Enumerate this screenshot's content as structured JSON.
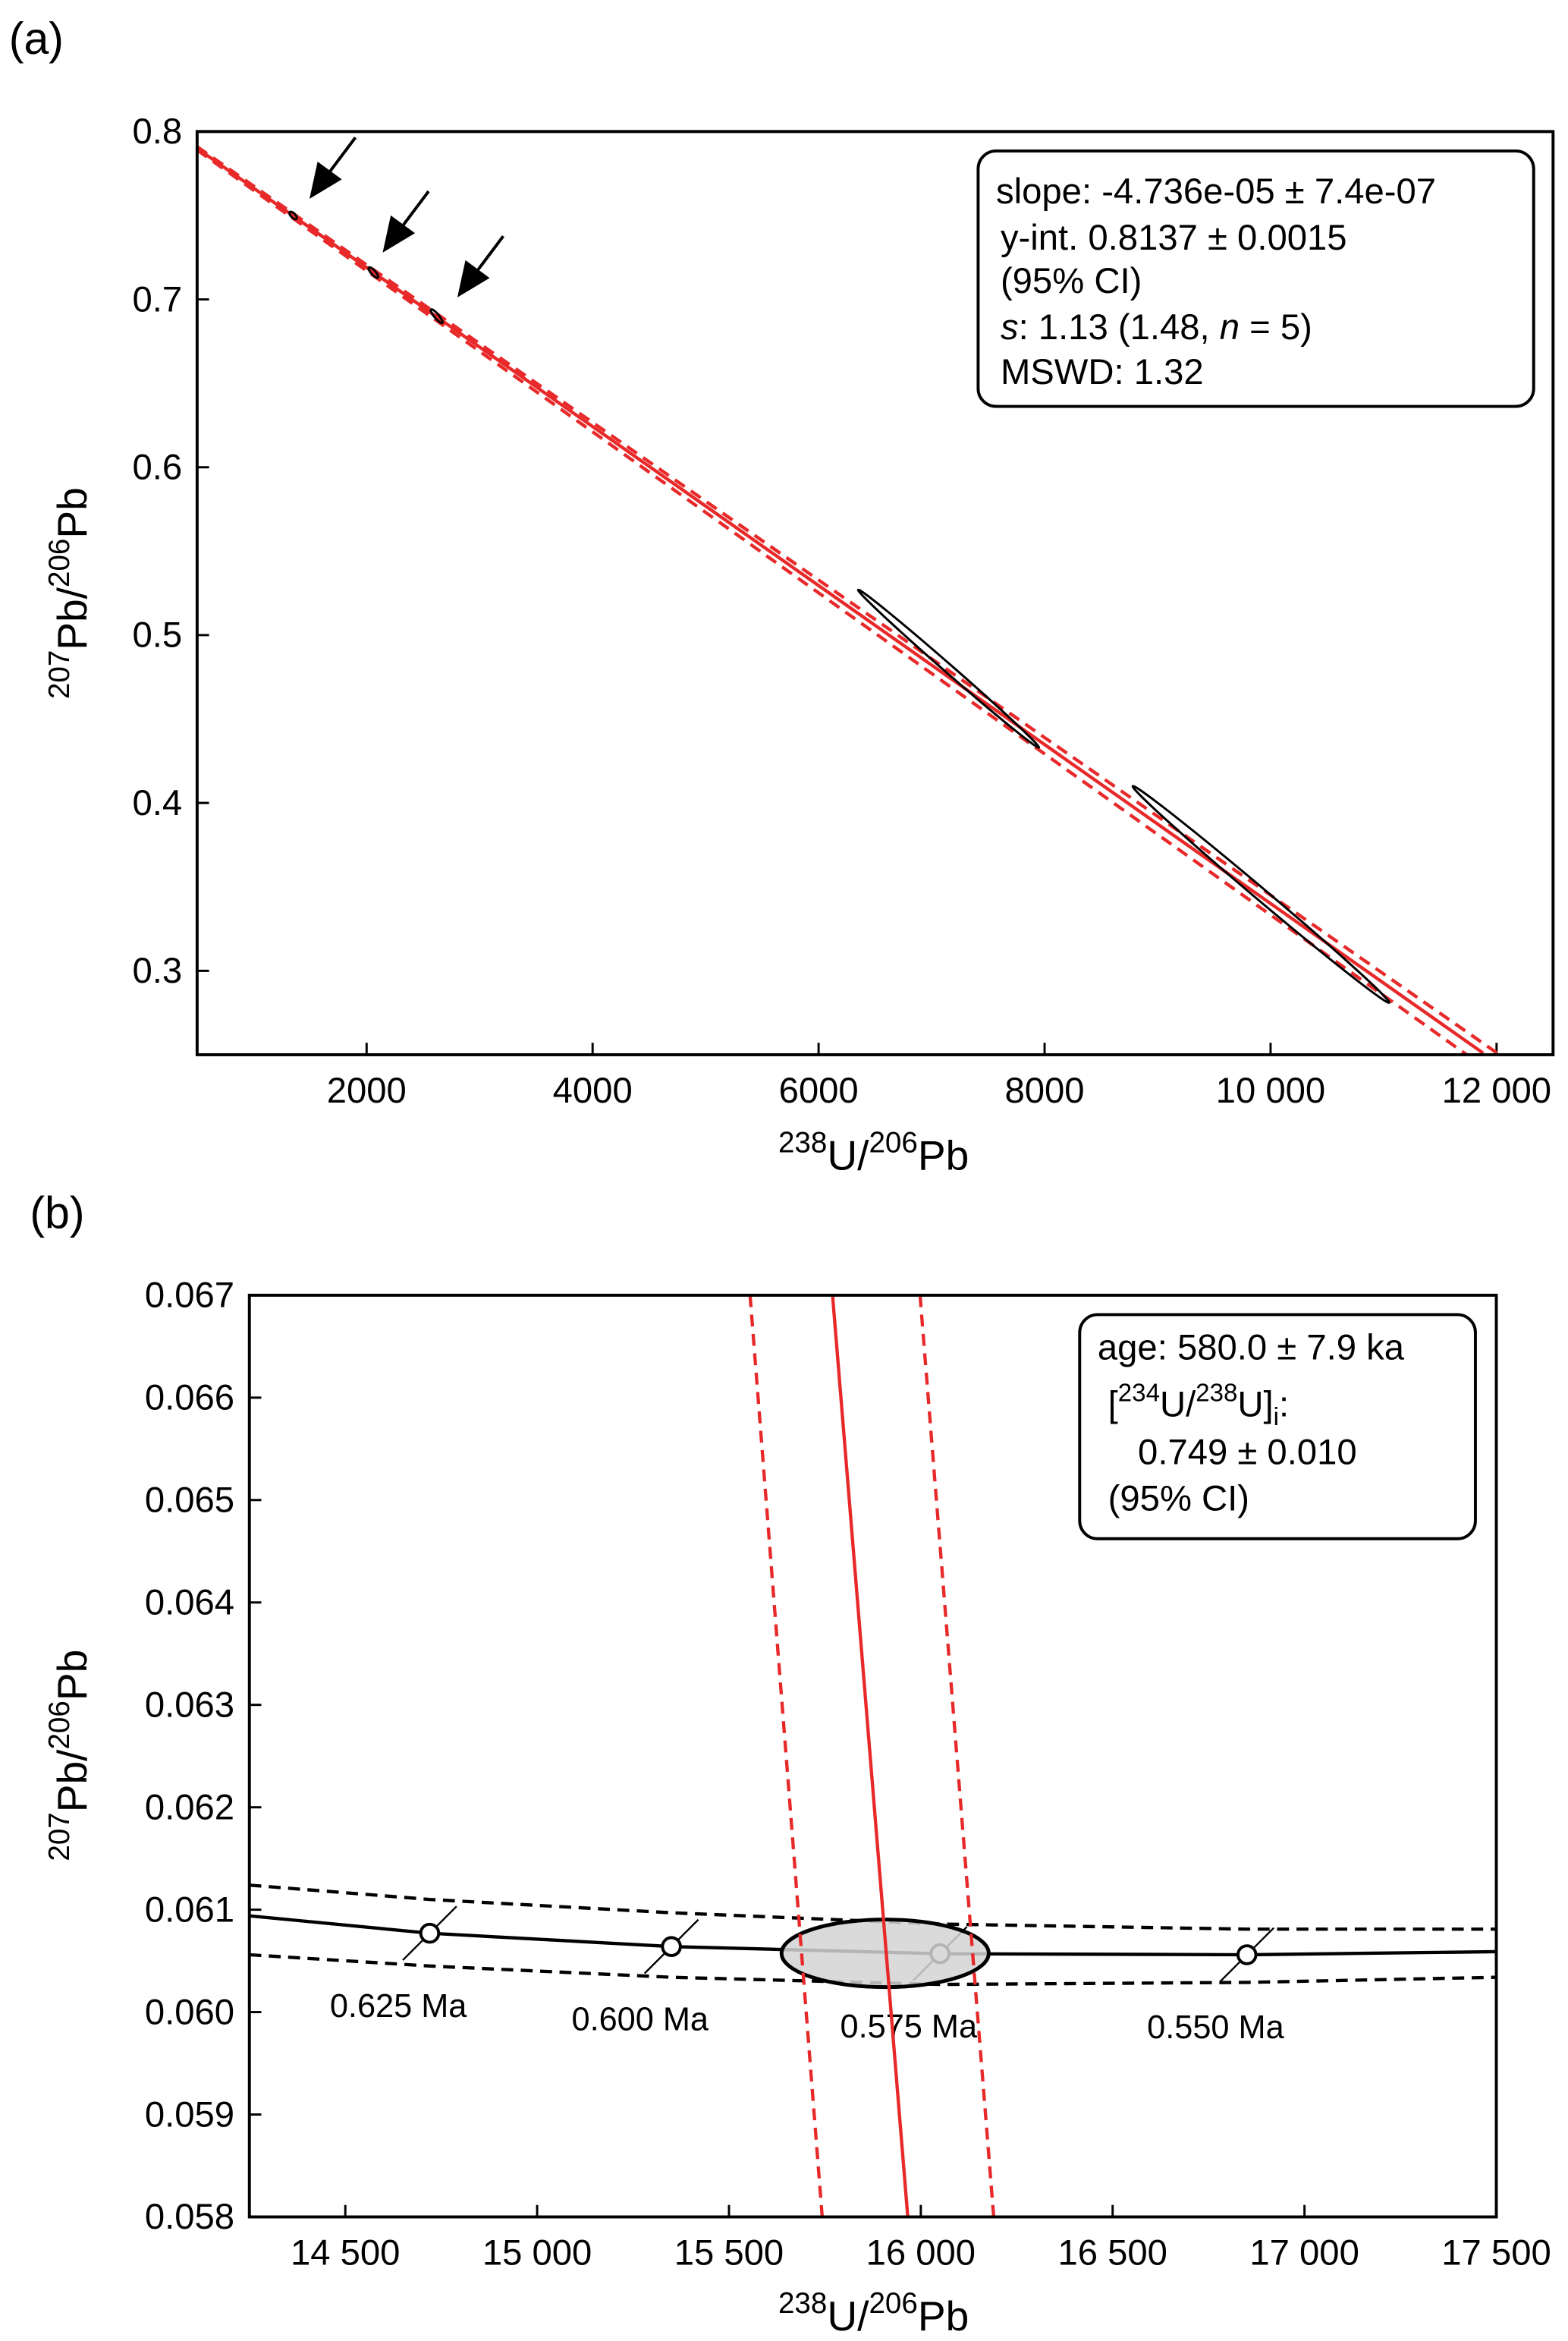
{
  "chart_data": [
    {
      "type": "line",
      "panel_label": "(a)",
      "x_label": [
        {
          "text": "238",
          "style": "sup"
        },
        "U/",
        {
          "text": "206",
          "style": "sup"
        },
        "Pb"
      ],
      "y_label": [
        {
          "text": "207",
          "style": "sup"
        },
        "Pb/",
        {
          "text": "206",
          "style": "sup"
        },
        "Pb"
      ],
      "xlim": [
        500,
        12500
      ],
      "xticks": [
        2000,
        4000,
        6000,
        8000,
        {
          "value": 10000,
          "label": "10 000"
        },
        {
          "value": 12000,
          "label": "12 000"
        }
      ],
      "ylim": [
        0.25,
        0.8
      ],
      "yticks": [
        0.3,
        0.4,
        0.5,
        0.6,
        0.7,
        0.8
      ],
      "series": [
        {
          "color": "#e8292a",
          "dash": "solid",
          "x": [
            500,
            11881
          ],
          "values": [
            0.79,
            0.251
          ]
        },
        {
          "color": "#e8292a",
          "dash": "dashed",
          "x": [
            500,
            11736
          ],
          "values": [
            0.789,
            0.25
          ]
        },
        {
          "color": "#e8292a",
          "dash": "dashed",
          "x": [
            500,
            12026
          ],
          "values": [
            0.791,
            0.25
          ]
        }
      ],
      "ellipse_color": "#000000",
      "ellipses": [
        {
          "x": 1350,
          "x_err": 30,
          "y": 0.75,
          "y_err": 0.002
        },
        {
          "x": 2060,
          "x_err": 40,
          "y": 0.716,
          "y_err": 0.003
        },
        {
          "x": 2620,
          "x_err": 50,
          "y": 0.69,
          "y_err": 0.004
        },
        {
          "x": 7150,
          "x_err": 800,
          "y": 0.48,
          "y_err": 0.047
        },
        {
          "x": 9915,
          "x_err": 1135,
          "y": 0.3455,
          "y_err": 0.0645
        }
      ],
      "annotation": [
        [
          "slope: -4.736e-05 ± 7.4e-07"
        ],
        [
          "y-int. 0.8137 ± 0.0015"
        ],
        [
          "(95% CI)"
        ],
        [
          {
            "text": "s",
            "style": "italic"
          },
          ": 1.13 (1.48, ",
          {
            "text": "n",
            "style": "italic"
          },
          " = 5)"
        ],
        [
          "MSWD: 1.32"
        ]
      ]
    },
    {
      "type": "line",
      "panel_label": "(b)",
      "x_label": [
        {
          "text": "238",
          "style": "sup"
        },
        "U/",
        {
          "text": "206",
          "style": "sup"
        },
        "Pb"
      ],
      "y_label": [
        {
          "text": "207",
          "style": "sup"
        },
        "Pb/",
        {
          "text": "206",
          "style": "sup"
        },
        "Pb"
      ],
      "xlim": [
        14250,
        17500
      ],
      "xticks": [
        {
          "value": 14500,
          "label": "14 500"
        },
        {
          "value": 15000,
          "label": "15 000"
        },
        {
          "value": 15500,
          "label": "15 500"
        },
        {
          "value": 16000,
          "label": "16 000"
        },
        {
          "value": 16500,
          "label": "16 500"
        },
        {
          "value": 17000,
          "label": "17 000"
        },
        {
          "value": 17500,
          "label": "17 500"
        }
      ],
      "ylim": [
        0.058,
        0.067
      ],
      "yticks": [
        0.058,
        0.059,
        {
          "value": 0.06,
          "label": "0.060"
        },
        0.061,
        0.062,
        0.063,
        0.064,
        0.065,
        0.066,
        0.067
      ],
      "series": [
        {
          "color": "#000000",
          "dash": "solid",
          "x": [
            14250,
            14720,
            15350,
            16050,
            16850,
            17500
          ],
          "values": [
            0.06094,
            0.06077,
            0.06064,
            0.06057,
            0.06056,
            0.06059
          ]
        },
        {
          "color": "#000000",
          "dash": "dashed",
          "x": [
            14250,
            14720,
            15350,
            16050,
            16850,
            17500
          ],
          "values": [
            0.06124,
            0.0611,
            0.06097,
            0.06086,
            0.06081,
            0.06081
          ]
        },
        {
          "color": "#000000",
          "dash": "dashed",
          "x": [
            14250,
            14720,
            15350,
            16050,
            16850,
            17500
          ],
          "values": [
            0.06056,
            0.06045,
            0.06034,
            0.06027,
            0.06029,
            0.06034
          ]
        }
      ],
      "age_markers": [
        {
          "x": 14720,
          "y": 0.06077,
          "label": "0.625 Ma"
        },
        {
          "x": 15350,
          "y": 0.06064,
          "label": "0.600 Ma"
        },
        {
          "x": 16050,
          "y": 0.06057,
          "label": "0.575 Ma"
        },
        {
          "x": 16850,
          "y": 0.06056,
          "label": "0.550 Ma"
        }
      ],
      "ellipse_color": "#000000",
      "ellipse_fill": "#d3d3d3",
      "ellipses": [
        {
          "x": 15907,
          "x_err": 270,
          "y": 0.060574,
          "y_err": 0.00033
        }
      ],
      "overlay_series": [
        {
          "color": "#e8292a",
          "dash": "solid",
          "x": [
            15770,
            15966
          ],
          "values": [
            0.067,
            0.058
          ]
        },
        {
          "color": "#e8292a",
          "dash": "dashed",
          "x": [
            15555,
            15743
          ],
          "values": [
            0.067,
            0.058
          ]
        },
        {
          "color": "#e8292a",
          "dash": "dashed",
          "x": [
            15998,
            16190
          ],
          "values": [
            0.067,
            0.058
          ]
        }
      ],
      "annotation": [
        [
          "age: 580.0 ± 7.9 ka"
        ],
        [
          "[",
          {
            "text": "234",
            "style": "sup"
          },
          "U/",
          {
            "text": "238",
            "style": "sup"
          },
          "U]",
          {
            "text": "i",
            "style": "sub"
          },
          ":"
        ],
        [
          "0.749 ± 0.010"
        ],
        [
          "(95% CI)"
        ]
      ]
    }
  ]
}
